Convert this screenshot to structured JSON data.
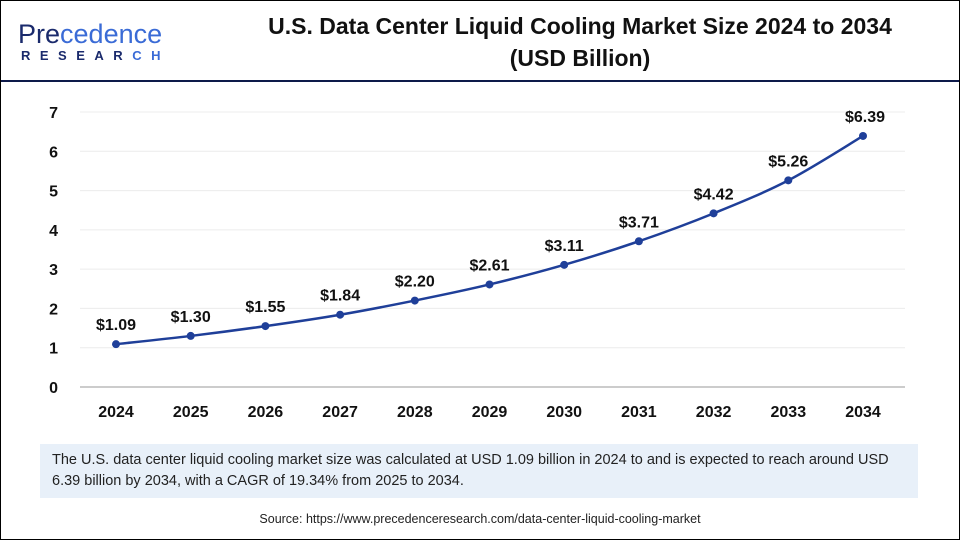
{
  "logo": {
    "text_main": "Precedence",
    "text_sub": "RESEARCH"
  },
  "title_line1": "U.S. Data Center Liquid Cooling Market Size 2024 to 2034",
  "title_line2": "(USD Billion)",
  "chart_data": {
    "type": "line",
    "title": "U.S. Data Center Liquid Cooling Market Size 2024 to 2034 (USD Billion)",
    "categories": [
      "2024",
      "2025",
      "2026",
      "2027",
      "2028",
      "2029",
      "2030",
      "2031",
      "2032",
      "2033",
      "2034"
    ],
    "values": [
      1.09,
      1.3,
      1.55,
      1.84,
      2.2,
      2.61,
      3.11,
      3.71,
      4.42,
      5.26,
      6.39
    ],
    "data_labels": [
      "$1.09",
      "$1.30",
      "$1.55",
      "$1.84",
      "$2.20",
      "$2.61",
      "$3.11",
      "$3.71",
      "$4.42",
      "$5.26",
      "$6.39"
    ],
    "ylim": [
      0,
      7
    ],
    "yticks": [
      "0",
      "1",
      "2",
      "3",
      "4",
      "5",
      "6",
      "7"
    ],
    "grid": true,
    "line_color": "#1f3f99"
  },
  "caption": "The U.S. data center liquid cooling market size was calculated at USD 1.09 billion in 2024 to and is expected to reach around USD 6.39 billion by 2034, with a CAGR of 19.34% from 2025 to 2034.",
  "source": "Source: https://www.precedenceresearch.com/data-center-liquid-cooling-market"
}
